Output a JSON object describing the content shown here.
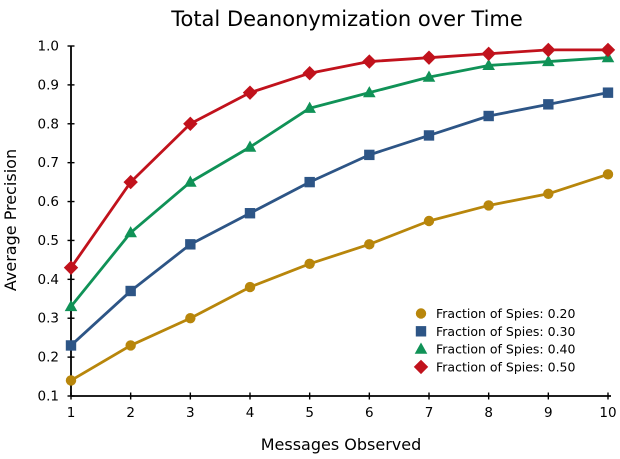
{
  "chart_data": {
    "type": "line",
    "title": "Total Deanonymization over Time",
    "xlabel": "Messages Observed",
    "ylabel": "Average Precision",
    "x": [
      1,
      2,
      3,
      4,
      5,
      6,
      7,
      8,
      9,
      10
    ],
    "xlim": [
      1,
      10
    ],
    "ylim": [
      0.1,
      1.0
    ],
    "xticks": [
      1,
      2,
      3,
      4,
      5,
      6,
      7,
      8,
      9,
      10
    ],
    "yticks": [
      0.1,
      0.2,
      0.3,
      0.4,
      0.5,
      0.6,
      0.7,
      0.8,
      0.9,
      1.0
    ],
    "grid": false,
    "legend_position": "lower right",
    "background_color": "#ffffff",
    "axis_color": "#000000",
    "series": [
      {
        "name": "Fraction of Spies: 0.20",
        "marker": "circle",
        "color": "#B8860B",
        "values": [
          0.14,
          0.23,
          0.3,
          0.38,
          0.44,
          0.49,
          0.55,
          0.59,
          0.62,
          0.67
        ]
      },
      {
        "name": "Fraction of Spies: 0.30",
        "marker": "square",
        "color": "#2D5586",
        "values": [
          0.23,
          0.37,
          0.49,
          0.57,
          0.65,
          0.72,
          0.77,
          0.82,
          0.85,
          0.88
        ]
      },
      {
        "name": "Fraction of Spies: 0.40",
        "marker": "triangle",
        "color": "#109257",
        "values": [
          0.33,
          0.52,
          0.65,
          0.74,
          0.84,
          0.88,
          0.92,
          0.95,
          0.96,
          0.97
        ]
      },
      {
        "name": "Fraction of Spies: 0.50",
        "marker": "diamond",
        "color": "#C1121C",
        "values": [
          0.43,
          0.65,
          0.8,
          0.88,
          0.93,
          0.96,
          0.97,
          0.98,
          0.99,
          0.99
        ]
      }
    ]
  }
}
